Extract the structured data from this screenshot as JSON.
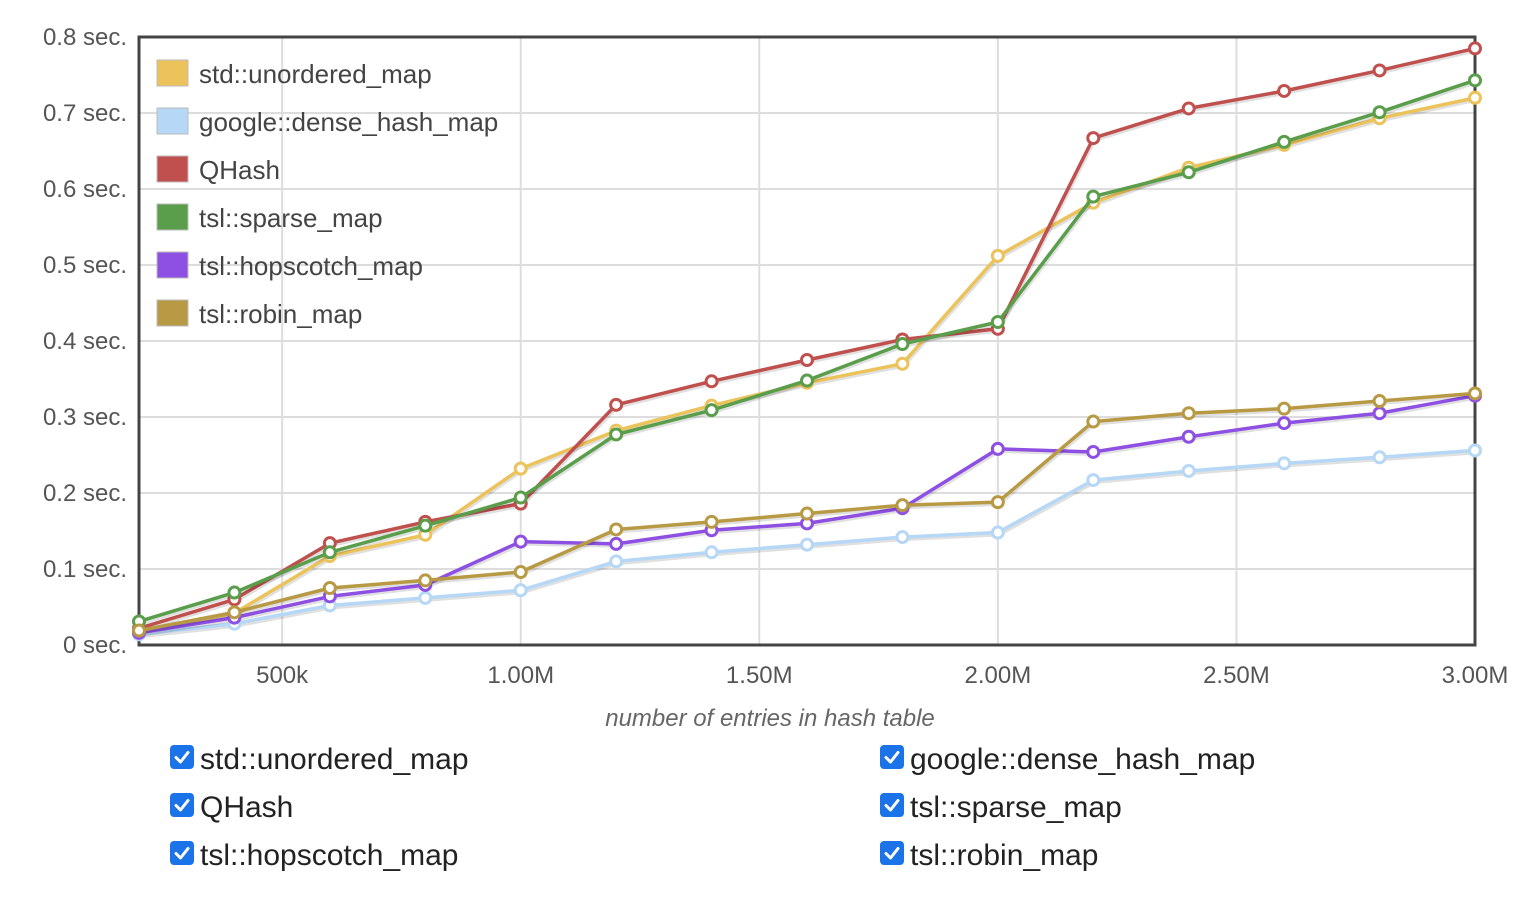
{
  "chart_data": {
    "type": "line",
    "title": "",
    "xlabel": "number of entries in hash table",
    "ylabel": "",
    "xlim": [
      200000,
      3000000
    ],
    "ylim": [
      0,
      0.8
    ],
    "x_ticks": [
      {
        "value": 500000,
        "label": "500k"
      },
      {
        "value": 1000000,
        "label": "1.00M"
      },
      {
        "value": 1500000,
        "label": "1.50M"
      },
      {
        "value": 2000000,
        "label": "2.00M"
      },
      {
        "value": 2500000,
        "label": "2.50M"
      },
      {
        "value": 3000000,
        "label": "3.00M"
      }
    ],
    "y_ticks": [
      {
        "value": 0,
        "label": "0 sec."
      },
      {
        "value": 0.1,
        "label": "0.1 sec."
      },
      {
        "value": 0.2,
        "label": "0.2 sec."
      },
      {
        "value": 0.3,
        "label": "0.3 sec."
      },
      {
        "value": 0.4,
        "label": "0.4 sec."
      },
      {
        "value": 0.5,
        "label": "0.5 sec."
      },
      {
        "value": 0.6,
        "label": "0.6 sec."
      },
      {
        "value": 0.7,
        "label": "0.7 sec."
      },
      {
        "value": 0.8,
        "label": "0.8 sec."
      }
    ],
    "grid": true,
    "legend_position": "top-left",
    "x": [
      200000,
      400000,
      600000,
      800000,
      1000000,
      1200000,
      1400000,
      1600000,
      1800000,
      2000000,
      2200000,
      2400000,
      2600000,
      2800000,
      3000000
    ],
    "series": [
      {
        "name": "std::unordered_map",
        "color": "#ecc35a",
        "values": [
          0.018,
          0.042,
          0.117,
          0.145,
          0.232,
          0.282,
          0.315,
          0.345,
          0.37,
          0.512,
          0.582,
          0.628,
          0.658,
          0.693,
          0.72
        ]
      },
      {
        "name": "google::dense_hash_map",
        "color": "#b6d7f5",
        "values": [
          0.014,
          0.028,
          0.052,
          0.062,
          0.072,
          0.11,
          0.122,
          0.132,
          0.142,
          0.148,
          0.217,
          0.229,
          0.239,
          0.247,
          0.256
        ]
      },
      {
        "name": "QHash",
        "color": "#c0504d",
        "values": [
          0.022,
          0.06,
          0.134,
          0.162,
          0.186,
          0.316,
          0.347,
          0.375,
          0.402,
          0.416,
          0.667,
          0.706,
          0.729,
          0.756,
          0.785
        ]
      },
      {
        "name": "tsl::sparse_map",
        "color": "#5a9e4b",
        "values": [
          0.031,
          0.069,
          0.122,
          0.157,
          0.194,
          0.277,
          0.309,
          0.348,
          0.396,
          0.425,
          0.59,
          0.622,
          0.662,
          0.701,
          0.743
        ]
      },
      {
        "name": "tsl::hopscotch_map",
        "color": "#8e4fe3",
        "values": [
          0.016,
          0.036,
          0.064,
          0.079,
          0.136,
          0.133,
          0.151,
          0.16,
          0.18,
          0.258,
          0.254,
          0.274,
          0.292,
          0.305,
          0.328
        ]
      },
      {
        "name": "tsl::robin_map",
        "color": "#b89a45",
        "values": [
          0.019,
          0.043,
          0.075,
          0.085,
          0.096,
          0.152,
          0.162,
          0.173,
          0.184,
          0.188,
          0.294,
          0.305,
          0.311,
          0.321,
          0.331
        ]
      }
    ]
  },
  "toggles": [
    {
      "label": "std::unordered_map",
      "checked": true
    },
    {
      "label": "google::dense_hash_map",
      "checked": true
    },
    {
      "label": "QHash",
      "checked": true
    },
    {
      "label": "tsl::sparse_map",
      "checked": true
    },
    {
      "label": "tsl::hopscotch_map",
      "checked": true
    },
    {
      "label": "tsl::robin_map",
      "checked": true
    }
  ]
}
